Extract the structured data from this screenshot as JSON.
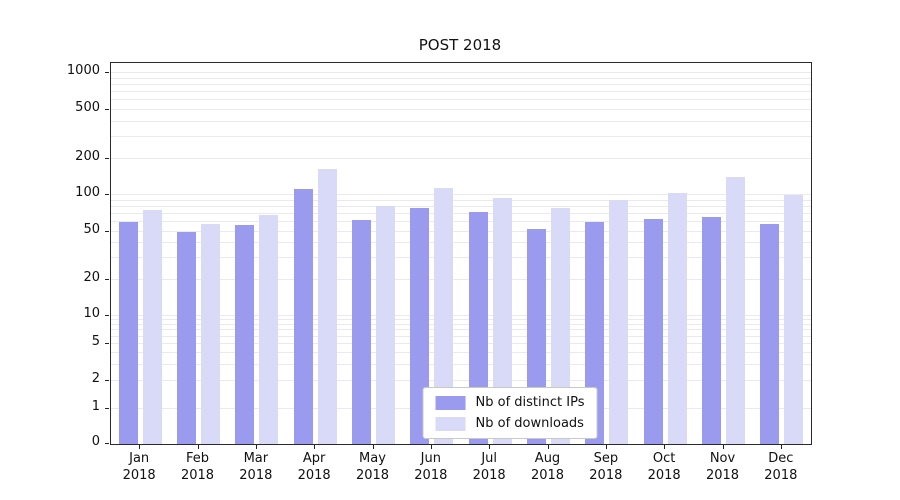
{
  "chart_data": {
    "type": "bar",
    "title": "POST 2018",
    "scale": "symlog",
    "grid": true,
    "legend_position": "lower center",
    "year": "2018",
    "months": [
      "Jan",
      "Feb",
      "Mar",
      "Apr",
      "May",
      "Jun",
      "Jul",
      "Aug",
      "Sep",
      "Oct",
      "Nov",
      "Dec"
    ],
    "categories": [
      "Jan 2018",
      "Feb 2018",
      "Mar 2018",
      "Apr 2018",
      "May 2018",
      "Jun 2018",
      "Jul 2018",
      "Aug 2018",
      "Sep 2018",
      "Oct 2018",
      "Nov 2018",
      "Dec 2018"
    ],
    "y_ticks": [
      0,
      1,
      2,
      5,
      10,
      20,
      50,
      100,
      200,
      500,
      1000
    ],
    "ylim": [
      0,
      1100
    ],
    "series": [
      {
        "name": "Nb of distinct IPs",
        "color": "#9a9aef",
        "values": [
          60,
          50,
          57,
          112,
          62,
          78,
          73,
          53,
          60,
          63,
          66,
          58
        ]
      },
      {
        "name": "Nb of downloads",
        "color": "#d9d9f8",
        "values": [
          75,
          58,
          68,
          165,
          82,
          115,
          95,
          78,
          92,
          105,
          140,
          100
        ]
      }
    ]
  }
}
